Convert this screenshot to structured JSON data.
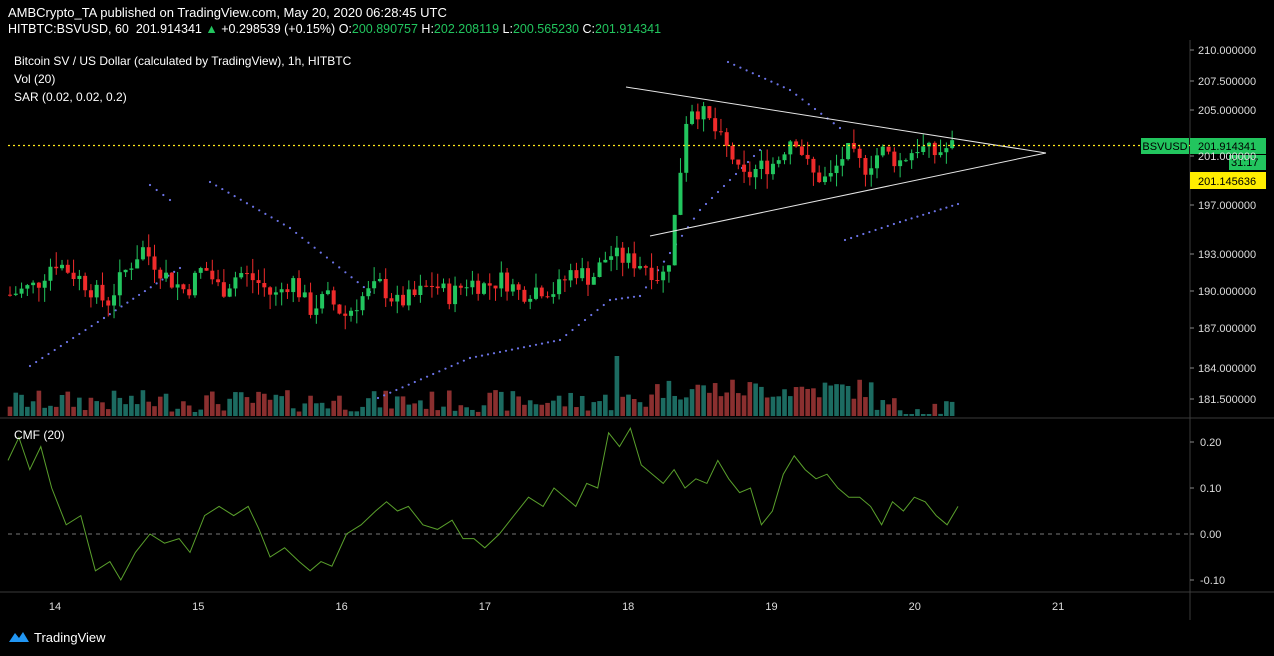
{
  "header": {
    "publisher": "AMBCrypto_TA published on TradingView.com, May 20, 2020 06:28:45 UTC",
    "symbol": "HITBTC:BSVUSD, 60",
    "last": "201.914341",
    "change": "+0.298539 (+0.15%)",
    "open_label": "O:",
    "open": "200.890757",
    "high_label": "H:",
    "high": "202.208119",
    "low_label": "L:",
    "low": "200.565230",
    "close_label": "C:",
    "close": "201.914341"
  },
  "legend": {
    "title": "Bitcoin SV / US Dollar (calculated by TradingView), 1h, HITBTC",
    "vol": "Vol (20)",
    "sar": "SAR (0.02, 0.02, 0.2)",
    "cmf": "CMF (20)"
  },
  "badges": {
    "symbol": "BSVUSD",
    "price": "201.914341",
    "countdown": "31:17",
    "sar_price": "201.145636"
  },
  "footer": {
    "brand": "TradingView"
  },
  "colors": {
    "up": "#22c55e",
    "down": "#ef2b2b",
    "vol_up": "#1c6b61",
    "vol_down": "#8a2f2f",
    "sar": "#6b73e6",
    "cmf": "#5aa02c",
    "price_line": "#ffe81a"
  },
  "chart_data": [
    {
      "type": "candlestick",
      "title": "Bitcoin SV / US Dollar (calculated by TradingView), 1h, HITBTC",
      "x_tick_labels": [
        "14",
        "15",
        "16",
        "17",
        "18",
        "19",
        "20",
        "21"
      ],
      "y_tick_labels": [
        "181.500000",
        "184.000000",
        "187.000000",
        "190.000000",
        "193.000000",
        "197.000000",
        "201.000000",
        "205.000000",
        "207.500000",
        "210.000000"
      ],
      "ylim": [
        181.5,
        210.0
      ],
      "last_price": 201.914341,
      "sar_last": 201.145636,
      "volume_label": "Vol (20)",
      "sar_label": "SAR (0.02, 0.02, 0.2)",
      "triangle_upper": [
        [
          18.0,
          206.8
        ],
        [
          21.0,
          202.0
        ]
      ],
      "triangle_lower": [
        [
          18.1,
          194.5
        ],
        [
          21.0,
          202.0
        ]
      ]
    },
    {
      "type": "line",
      "title": "CMF (20)",
      "y_tick_labels": [
        "0.20",
        "0.10",
        "0.00",
        "-0.10"
      ],
      "ylim": [
        -0.12,
        0.24
      ],
      "zero_line": 0.0
    }
  ]
}
